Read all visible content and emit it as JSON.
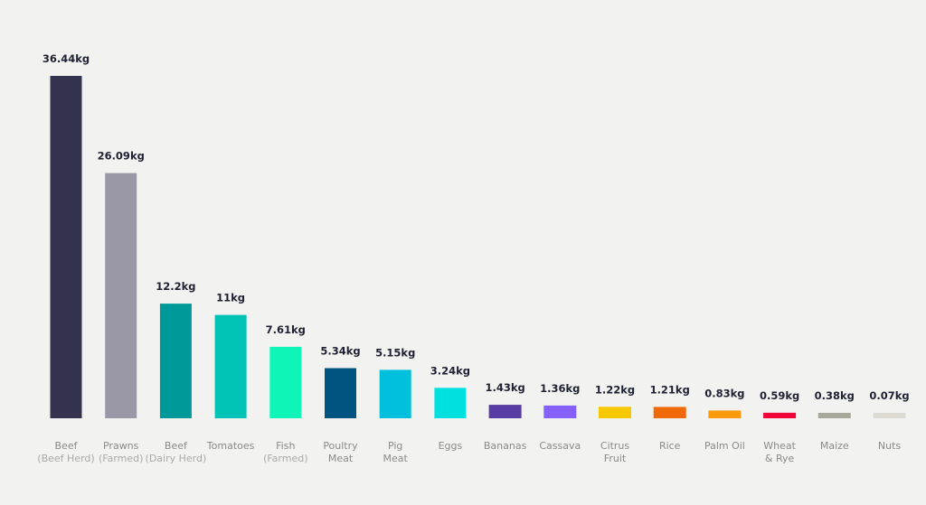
{
  "chart_data": {
    "type": "bar",
    "title": "",
    "xlabel": "",
    "ylabel": "",
    "ylim": [
      0,
      36.44
    ],
    "grid": false,
    "legend": "none",
    "unit": "kg",
    "bars": [
      {
        "label": [
          "Beef",
          "(Beef Herd)"
        ],
        "value": 36.44,
        "display": "36.44kg",
        "color": "#33334f"
      },
      {
        "label": [
          "Prawns",
          "(Farmed)"
        ],
        "value": 26.09,
        "display": "26.09kg",
        "color": "#9a98a6"
      },
      {
        "label": [
          "Beef",
          "(Dairy Herd)"
        ],
        "value": 12.2,
        "display": "12.2kg",
        "color": "#009999"
      },
      {
        "label": [
          "Tomatoes"
        ],
        "value": 11,
        "display": "11kg",
        "color": "#00c2b5"
      },
      {
        "label": [
          "Fish",
          "(Farmed)"
        ],
        "value": 7.61,
        "display": "7.61kg",
        "color": "#0ff5b8"
      },
      {
        "label": [
          "Poultry",
          "Meat"
        ],
        "value": 5.34,
        "display": "5.34kg",
        "color": "#005580"
      },
      {
        "label": [
          "Pig",
          "Meat"
        ],
        "value": 5.15,
        "display": "5.15kg",
        "color": "#00c0de"
      },
      {
        "label": [
          "Eggs"
        ],
        "value": 3.24,
        "display": "3.24kg",
        "color": "#00e0de"
      },
      {
        "label": [
          "Bananas"
        ],
        "value": 1.43,
        "display": "1.43kg",
        "color": "#563ca3"
      },
      {
        "label": [
          "Cassava"
        ],
        "value": 1.36,
        "display": "1.36kg",
        "color": "#8660fa"
      },
      {
        "label": [
          "Citrus",
          "Fruit"
        ],
        "value": 1.22,
        "display": "1.22kg",
        "color": "#f7c800"
      },
      {
        "label": [
          "Rice"
        ],
        "value": 1.21,
        "display": "1.21kg",
        "color": "#f06a0a"
      },
      {
        "label": [
          "Palm Oil"
        ],
        "value": 0.83,
        "display": "0.83kg",
        "color": "#ff9a0a"
      },
      {
        "label": [
          "Wheat",
          "& Rye"
        ],
        "value": 0.59,
        "display": "0.59kg",
        "color": "#f0063a"
      },
      {
        "label": [
          "Maize"
        ],
        "value": 0.38,
        "display": "0.38kg",
        "color": "#a8a89a"
      },
      {
        "label": [
          "Nuts"
        ],
        "value": 0.07,
        "display": "0.07kg",
        "color": "#dedcd2"
      }
    ]
  }
}
